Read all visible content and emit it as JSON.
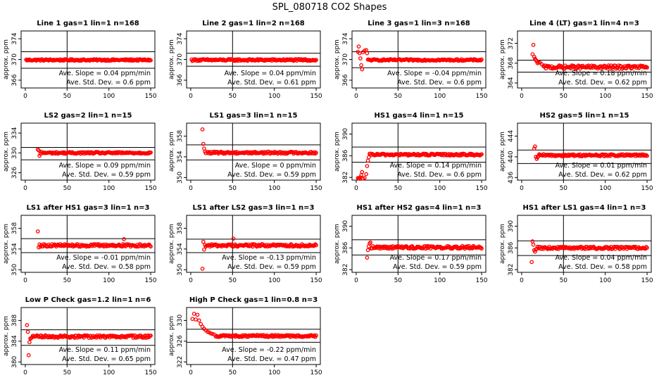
{
  "title": "SPL_080718  CO2 Shapes",
  "ylabel": "approx. ppm",
  "colors": {
    "points": "#ff0000",
    "lines": "#000000"
  },
  "chart_data": [
    {
      "type": "scatter",
      "title": "Line 1 gas=1 lin=1 n=168",
      "x_ticks": [
        0,
        50,
        100,
        150
      ],
      "y_ticks": [
        366,
        370,
        374
      ],
      "ylim": [
        364.5,
        375.5
      ],
      "xlim": [
        -5,
        155
      ],
      "hlines": [
        371.5,
        368.3
      ],
      "vline": 50,
      "slope_label": "Ave. Slope =",
      "slope_value": "0.04",
      "slope_unit": "ppm/min",
      "sd_label": "Ave. Std. Dev. =",
      "sd_value": "0.6",
      "sd_unit": "ppm",
      "series": [
        {
          "x_start": 1,
          "x_end": 150,
          "level": 369.9,
          "noise": 0.15,
          "early": []
        }
      ]
    },
    {
      "type": "scatter",
      "title": "Line 2 gas=1 lin=2 n=168",
      "x_ticks": [
        0,
        50,
        100,
        150
      ],
      "y_ticks": [
        366,
        370,
        374
      ],
      "ylim": [
        364.5,
        375.5
      ],
      "xlim": [
        -5,
        155
      ],
      "hlines": [
        371.2,
        368.7
      ],
      "vline": 50,
      "slope_label": "Ave. Slope =",
      "slope_value": "0.04",
      "slope_unit": "ppm/min",
      "sd_label": "Ave. Std. Dev. =",
      "sd_value": "0.61",
      "sd_unit": "ppm",
      "series": [
        {
          "x_start": 1,
          "x_end": 150,
          "level": 369.9,
          "noise": 0.18,
          "early": []
        }
      ]
    },
    {
      "type": "scatter",
      "title": "Line 3 gas=1 lin=3 n=168",
      "x_ticks": [
        0,
        50,
        100,
        150
      ],
      "y_ticks": [
        366,
        370,
        374
      ],
      "ylim": [
        364.5,
        375.5
      ],
      "xlim": [
        -5,
        155
      ],
      "hlines": [
        371.5,
        368.4
      ],
      "vline": 50,
      "slope_label": "Ave. Slope =",
      "slope_value": "-0.04",
      "slope_unit": "ppm/min",
      "sd_label": "Ave. Std. Dev. =",
      "sd_value": "0.6",
      "sd_unit": "ppm",
      "series": [
        {
          "x_start": 14,
          "x_end": 150,
          "level": 369.9,
          "noise": 0.15,
          "early": [
            [
              2,
              371.5
            ],
            [
              3,
              372.5
            ],
            [
              4,
              371.2
            ],
            [
              5,
              370.2
            ],
            [
              6,
              368.9
            ],
            [
              7,
              368.1
            ],
            [
              8,
              371.4
            ],
            [
              10,
              371.7
            ],
            [
              12,
              371.8
            ],
            [
              13,
              371.2
            ]
          ]
        }
      ]
    },
    {
      "type": "scatter",
      "title": "Line 4 (LT) gas=1 lin=4 n=3",
      "x_ticks": [
        0,
        50,
        100,
        150
      ],
      "y_ticks": [
        364,
        368,
        372
      ],
      "ylim": [
        363,
        374.5
      ],
      "xlim": [
        -5,
        155
      ],
      "hlines": [
        368.6,
        366.2
      ],
      "vline": 50,
      "slope_label": "Ave. Slope =",
      "slope_value": "0.18",
      "slope_unit": "ppm/min",
      "sd_label": "Ave. Std. Dev. =",
      "sd_value": "0.62",
      "sd_unit": "ppm",
      "series": [
        {
          "x_start": 26,
          "x_end": 150,
          "level": 367.2,
          "noise": 0.35,
          "early": [
            [
              13,
              369.8
            ],
            [
              14,
              371.7
            ],
            [
              15,
              369.3
            ],
            [
              16,
              368.9
            ],
            [
              17,
              368.6
            ],
            [
              18,
              368.4
            ],
            [
              19,
              368.0
            ],
            [
              20,
              368.2
            ],
            [
              22,
              368.1
            ],
            [
              24,
              367.8
            ]
          ]
        }
      ]
    },
    {
      "type": "scatter",
      "title": "LS2 gas=2 lin=1 n=15",
      "x_ticks": [
        0,
        50,
        100,
        150
      ],
      "y_ticks": [
        326,
        330,
        334
      ],
      "ylim": [
        324.5,
        336
      ],
      "xlim": [
        -5,
        155
      ],
      "hlines": [
        331.1,
        328.6
      ],
      "vline": 50,
      "slope_label": "Ave. Slope =",
      "slope_value": "0.09",
      "slope_unit": "ppm/min",
      "sd_label": "Ave. Std. Dev. =",
      "sd_value": "0.59",
      "sd_unit": "ppm",
      "series": [
        {
          "x_start": 20,
          "x_end": 150,
          "level": 330.0,
          "noise": 0.18,
          "early": [
            [
              15,
              330.7
            ],
            [
              16,
              330.5
            ],
            [
              17,
              329.4
            ],
            [
              18,
              329.8
            ],
            [
              19,
              330.2
            ]
          ]
        }
      ]
    },
    {
      "type": "scatter",
      "title": "LS1 gas=3 lin=1 n=15",
      "x_ticks": [
        0,
        50,
        100,
        150
      ],
      "y_ticks": [
        350,
        354,
        358
      ],
      "ylim": [
        349.5,
        360.5
      ],
      "xlim": [
        -5,
        155
      ],
      "hlines": [
        356.3,
        353.4
      ],
      "vline": 50,
      "slope_label": "Ave. Slope =",
      "slope_value": "0",
      "slope_unit": "ppm/min",
      "sd_label": "Ave. Std. Dev. =",
      "sd_value": "0.59",
      "sd_unit": "ppm",
      "series": [
        {
          "x_start": 20,
          "x_end": 150,
          "level": 354.8,
          "noise": 0.2,
          "early": [
            [
              14,
              359.3
            ],
            [
              15,
              356.5
            ],
            [
              16,
              355.6
            ],
            [
              17,
              355.0
            ],
            [
              18,
              354.7
            ]
          ]
        }
      ]
    },
    {
      "type": "scatter",
      "title": "HS1 gas=4 lin=1 n=15",
      "x_ticks": [
        0,
        50,
        100,
        150
      ],
      "y_ticks": [
        382,
        386,
        390
      ],
      "ylim": [
        381.5,
        392
      ],
      "xlim": [
        -5,
        155
      ],
      "hlines": [
        387.6,
        384.8
      ],
      "vline": 50,
      "slope_label": "Ave. Slope =",
      "slope_value": "0.14",
      "slope_unit": "ppm/min",
      "sd_label": "Ave. Std. Dev. =",
      "sd_value": "0.6",
      "sd_unit": "ppm",
      "series": [
        {
          "x_start": 16,
          "x_end": 150,
          "level": 386.2,
          "noise": 0.18,
          "early": [
            [
              2,
              381.9
            ],
            [
              3,
              381.8
            ],
            [
              4,
              381.7
            ],
            [
              5,
              382.0
            ],
            [
              6,
              382.4
            ],
            [
              7,
              383.0
            ],
            [
              8,
              381.8
            ],
            [
              10,
              381.9
            ],
            [
              12,
              382.6
            ],
            [
              13,
              384.1
            ],
            [
              14,
              385.1
            ],
            [
              15,
              385.7
            ]
          ]
        }
      ]
    },
    {
      "type": "scatter",
      "title": "HS2 gas=5 lin=1 n=15",
      "x_ticks": [
        0,
        50,
        100,
        150
      ],
      "y_ticks": [
        436,
        440,
        444
      ],
      "ylim": [
        435.5,
        446.5
      ],
      "xlim": [
        -5,
        155
      ],
      "hlines": [
        441.3,
        438.7
      ],
      "vline": 50,
      "slope_label": "Ave. Slope =",
      "slope_value": "0.01",
      "slope_unit": "ppm/min",
      "sd_label": "Ave. Std. Dev. =",
      "sd_value": "0.62",
      "sd_unit": "ppm",
      "series": [
        {
          "x_start": 21,
          "x_end": 150,
          "level": 440.3,
          "noise": 0.2,
          "early": [
            [
              15,
              441.6
            ],
            [
              16,
              442.0
            ],
            [
              17,
              440.0
            ],
            [
              18,
              439.6
            ],
            [
              19,
              439.9
            ],
            [
              20,
              440.1
            ]
          ]
        }
      ]
    },
    {
      "type": "scatter",
      "title": "LS1 after HS1 gas=3 lin=1 n=3",
      "x_ticks": [
        0,
        50,
        100,
        150
      ],
      "y_ticks": [
        350,
        354,
        358
      ],
      "ylim": [
        349.5,
        360.5
      ],
      "xlim": [
        -5,
        155
      ],
      "hlines": [
        356.0,
        353.3
      ],
      "vline": 50,
      "slope_label": "Ave. Slope =",
      "slope_value": "-0.01",
      "slope_unit": "ppm/min",
      "sd_label": "Ave. Std. Dev. =",
      "sd_value": "0.58",
      "sd_unit": "ppm",
      "series": [
        {
          "x_start": 18,
          "x_end": 150,
          "level": 354.7,
          "noise": 0.25,
          "early": [
            [
              15,
              357.4
            ],
            [
              16,
              354.3
            ],
            [
              17,
              354.9
            ]
          ],
          "extra": [
            [
              118,
              355.9
            ]
          ]
        }
      ]
    },
    {
      "type": "scatter",
      "title": "LS1 after LS2 gas=3 lin=1 n=3",
      "x_ticks": [
        0,
        50,
        100,
        150
      ],
      "y_ticks": [
        350,
        354,
        358
      ],
      "ylim": [
        349.5,
        360.5
      ],
      "xlim": [
        -5,
        155
      ],
      "hlines": [
        355.9,
        353.3
      ],
      "vline": 50,
      "slope_label": "Ave. Slope =",
      "slope_value": "-0.13",
      "slope_unit": "ppm/min",
      "sd_label": "Ave. Std. Dev. =",
      "sd_value": "0.59",
      "sd_unit": "ppm",
      "series": [
        {
          "x_start": 18,
          "x_end": 150,
          "level": 354.7,
          "noise": 0.25,
          "early": [
            [
              14,
              350.2
            ],
            [
              15,
              355.4
            ],
            [
              16,
              353.9
            ],
            [
              17,
              354.8
            ]
          ],
          "extra": [
            [
              51,
              356.0
            ]
          ]
        }
      ]
    },
    {
      "type": "scatter",
      "title": "HS1 after HS2 gas=4 lin=1 n=3",
      "x_ticks": [
        0,
        50,
        100,
        150
      ],
      "y_ticks": [
        382,
        386,
        390
      ],
      "ylim": [
        381.5,
        392
      ],
      "xlim": [
        -5,
        155
      ],
      "hlines": [
        387.5,
        384.7
      ],
      "vline": 50,
      "slope_label": "Ave. Slope =",
      "slope_value": "0.17",
      "slope_unit": "ppm/min",
      "sd_label": "Ave. Std. Dev. =",
      "sd_value": "0.59",
      "sd_unit": "ppm",
      "series": [
        {
          "x_start": 18,
          "x_end": 150,
          "level": 386.1,
          "noise": 0.25,
          "early": [
            [
              13,
              384.2
            ],
            [
              14,
              385.6
            ],
            [
              15,
              386.3
            ],
            [
              16,
              386.8
            ],
            [
              17,
              387.0
            ]
          ]
        }
      ]
    },
    {
      "type": "scatter",
      "title": "HS1 after LS1 gas=4 lin=1 n=3",
      "x_ticks": [
        0,
        50,
        100,
        150
      ],
      "y_ticks": [
        382,
        386,
        390
      ],
      "ylim": [
        381.5,
        392
      ],
      "xlim": [
        -5,
        155
      ],
      "hlines": [
        387.3,
        384.6
      ],
      "vline": 50,
      "slope_label": "Ave. Slope =",
      "slope_value": "0.04",
      "slope_unit": "ppm/min",
      "sd_label": "Ave. Std. Dev. =",
      "sd_value": "0.58",
      "sd_unit": "ppm",
      "series": [
        {
          "x_start": 18,
          "x_end": 150,
          "level": 386.0,
          "noise": 0.22,
          "early": [
            [
              12,
              383.4
            ],
            [
              13,
              387.2
            ],
            [
              14,
              386.6
            ],
            [
              15,
              385.6
            ],
            [
              16,
              385.3
            ],
            [
              17,
              385.7
            ]
          ]
        }
      ]
    },
    {
      "type": "scatter",
      "title": "Low P Check gas=1.2 lin=1 n=6",
      "x_ticks": [
        0,
        50,
        100,
        150
      ],
      "y_ticks": [
        380,
        384,
        388
      ],
      "ylim": [
        379.5,
        390.5
      ],
      "xlim": [
        -5,
        155
      ],
      "hlines": [
        386.2,
        383.2
      ],
      "vline": 50,
      "slope_label": "Ave. Slope =",
      "slope_value": "0.11",
      "slope_unit": "ppm/min",
      "sd_label": "Ave. Std. Dev. =",
      "sd_value": "0.65",
      "sd_unit": "ppm",
      "series": [
        {
          "x_start": 8,
          "x_end": 150,
          "level": 384.9,
          "noise": 0.25,
          "early": [
            [
              2,
              387.1
            ],
            [
              3,
              385.8
            ],
            [
              4,
              381.3
            ],
            [
              5,
              383.8
            ],
            [
              6,
              384.5
            ],
            [
              7,
              384.6
            ]
          ]
        }
      ]
    },
    {
      "type": "scatter",
      "title": "High P Check gas=1 lin=0.8 n=3",
      "x_ticks": [
        0,
        50,
        100,
        150
      ],
      "y_ticks": [
        322,
        326,
        330
      ],
      "ylim": [
        321.5,
        332.5
      ],
      "xlim": [
        -5,
        155
      ],
      "hlines": [
        328.3,
        325.8
      ],
      "vline": 50,
      "slope_label": "Ave. Slope =",
      "slope_value": "-0.22",
      "slope_unit": "ppm/min",
      "sd_label": "Ave. Std. Dev. =",
      "sd_value": "0.47",
      "sd_unit": "ppm",
      "series": [
        {
          "x_start": 30,
          "x_end": 150,
          "level": 327.0,
          "noise": 0.2,
          "early": [
            [
              2,
              330.3
            ],
            [
              4,
              331.3
            ],
            [
              6,
              330.2
            ],
            [
              8,
              331.1
            ],
            [
              10,
              330.0
            ],
            [
              12,
              329.3
            ],
            [
              14,
              328.8
            ],
            [
              16,
              328.4
            ],
            [
              18,
              328.1
            ],
            [
              20,
              327.8
            ],
            [
              22,
              327.7
            ],
            [
              24,
              327.5
            ],
            [
              26,
              327.4
            ],
            [
              28,
              327.3
            ]
          ]
        }
      ]
    }
  ]
}
